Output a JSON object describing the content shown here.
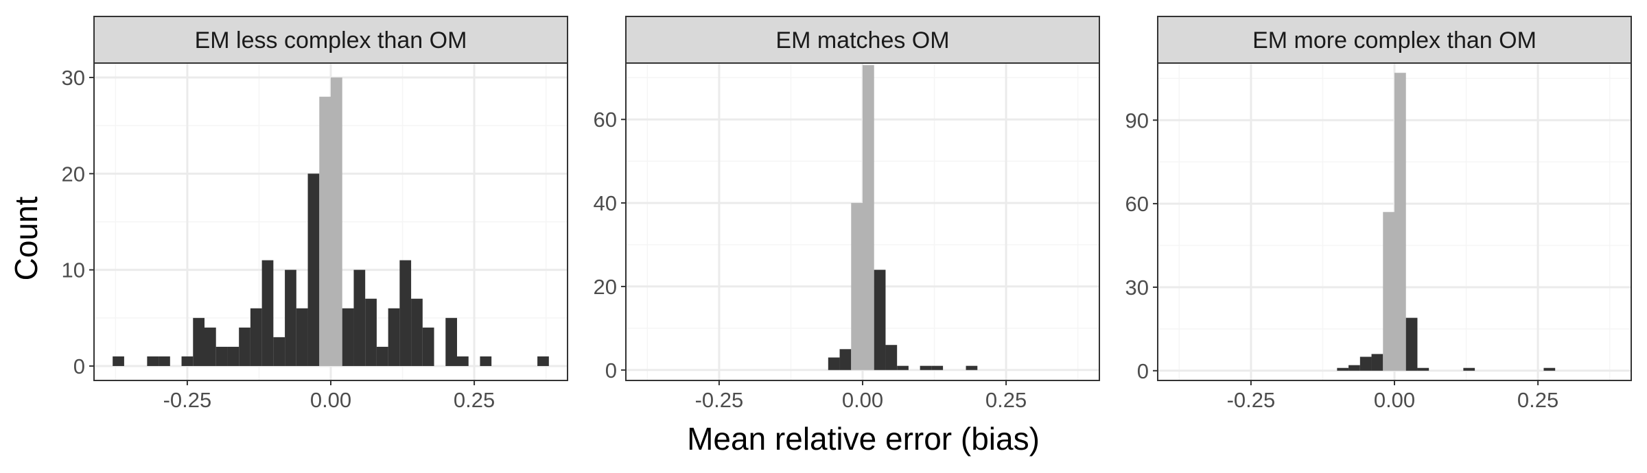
{
  "figure": {
    "xlabel": "Mean relative error (bias)",
    "ylabel": "Count"
  },
  "colors": {
    "bar_dark": "#333333",
    "bar_light": "#b3b3b3",
    "strip_fill": "#d9d9d9",
    "panel_border": "#333333",
    "grid_major": "#ebebeb",
    "grid_minor": "#f5f5f5"
  },
  "chart_data": [
    {
      "type": "bar",
      "title": "EM less complex than OM",
      "xlim": [
        -0.4125,
        0.4125
      ],
      "ylim": [
        -1.5,
        31.5
      ],
      "xticks": [
        -0.25,
        0.0,
        0.25
      ],
      "xtick_labels": [
        "-0.25",
        "0.00",
        "0.25"
      ],
      "yticks": [
        0,
        10,
        20,
        30
      ],
      "ytick_labels": [
        "0",
        "10",
        "20",
        "30"
      ],
      "bin_width": 0.02,
      "bins": [
        {
          "x": -0.37,
          "count": 1,
          "shade": "dark"
        },
        {
          "x": -0.31,
          "count": 1,
          "shade": "dark"
        },
        {
          "x": -0.29,
          "count": 1,
          "shade": "dark"
        },
        {
          "x": -0.25,
          "count": 1,
          "shade": "dark"
        },
        {
          "x": -0.23,
          "count": 5,
          "shade": "dark"
        },
        {
          "x": -0.21,
          "count": 4,
          "shade": "dark"
        },
        {
          "x": -0.19,
          "count": 2,
          "shade": "dark"
        },
        {
          "x": -0.17,
          "count": 2,
          "shade": "dark"
        },
        {
          "x": -0.15,
          "count": 4,
          "shade": "dark"
        },
        {
          "x": -0.13,
          "count": 6,
          "shade": "dark"
        },
        {
          "x": -0.11,
          "count": 11,
          "shade": "dark"
        },
        {
          "x": -0.09,
          "count": 3,
          "shade": "dark"
        },
        {
          "x": -0.07,
          "count": 10,
          "shade": "dark"
        },
        {
          "x": -0.05,
          "count": 6,
          "shade": "dark"
        },
        {
          "x": -0.03,
          "count": 20,
          "shade": "dark"
        },
        {
          "x": -0.01,
          "count": 28,
          "shade": "light"
        },
        {
          "x": 0.01,
          "count": 30,
          "shade": "light"
        },
        {
          "x": 0.03,
          "count": 6,
          "shade": "dark"
        },
        {
          "x": 0.05,
          "count": 10,
          "shade": "dark"
        },
        {
          "x": 0.07,
          "count": 7,
          "shade": "dark"
        },
        {
          "x": 0.09,
          "count": 2,
          "shade": "dark"
        },
        {
          "x": 0.11,
          "count": 6,
          "shade": "dark"
        },
        {
          "x": 0.13,
          "count": 11,
          "shade": "dark"
        },
        {
          "x": 0.15,
          "count": 7,
          "shade": "dark"
        },
        {
          "x": 0.17,
          "count": 4,
          "shade": "dark"
        },
        {
          "x": 0.21,
          "count": 5,
          "shade": "dark"
        },
        {
          "x": 0.23,
          "count": 1,
          "shade": "dark"
        },
        {
          "x": 0.27,
          "count": 1,
          "shade": "dark"
        },
        {
          "x": 0.37,
          "count": 1,
          "shade": "dark"
        }
      ]
    },
    {
      "type": "bar",
      "title": "EM matches OM",
      "xlim": [
        -0.4125,
        0.4125
      ],
      "ylim": [
        -2.5,
        73.5
      ],
      "xticks": [
        -0.25,
        0.0,
        0.25
      ],
      "xtick_labels": [
        "-0.25",
        "0.00",
        "0.25"
      ],
      "yticks": [
        0,
        20,
        40,
        60
      ],
      "ytick_labels": [
        "0",
        "20",
        "40",
        "60"
      ],
      "bin_width": 0.02,
      "bins": [
        {
          "x": -0.05,
          "count": 3,
          "shade": "dark"
        },
        {
          "x": -0.03,
          "count": 5,
          "shade": "dark"
        },
        {
          "x": -0.01,
          "count": 40,
          "shade": "light"
        },
        {
          "x": 0.01,
          "count": 73,
          "shade": "light"
        },
        {
          "x": 0.03,
          "count": 24,
          "shade": "dark"
        },
        {
          "x": 0.05,
          "count": 6,
          "shade": "dark"
        },
        {
          "x": 0.07,
          "count": 1,
          "shade": "dark"
        },
        {
          "x": 0.11,
          "count": 1,
          "shade": "dark"
        },
        {
          "x": 0.13,
          "count": 1,
          "shade": "dark"
        },
        {
          "x": 0.19,
          "count": 1,
          "shade": "dark"
        }
      ]
    },
    {
      "type": "bar",
      "title": "EM more complex than OM",
      "xlim": [
        -0.4125,
        0.4125
      ],
      "ylim": [
        -3.5,
        110.5
      ],
      "xticks": [
        -0.25,
        0.0,
        0.25
      ],
      "xtick_labels": [
        "-0.25",
        "0.00",
        "0.25"
      ],
      "yticks": [
        0,
        30,
        60,
        90
      ],
      "ytick_labels": [
        "0",
        "30",
        "60",
        "90"
      ],
      "bin_width": 0.02,
      "bins": [
        {
          "x": -0.09,
          "count": 1,
          "shade": "dark"
        },
        {
          "x": -0.07,
          "count": 2,
          "shade": "dark"
        },
        {
          "x": -0.05,
          "count": 5,
          "shade": "dark"
        },
        {
          "x": -0.03,
          "count": 6,
          "shade": "dark"
        },
        {
          "x": -0.01,
          "count": 57,
          "shade": "light"
        },
        {
          "x": 0.01,
          "count": 107,
          "shade": "light"
        },
        {
          "x": 0.03,
          "count": 19,
          "shade": "dark"
        },
        {
          "x": 0.05,
          "count": 1,
          "shade": "dark"
        },
        {
          "x": 0.13,
          "count": 1,
          "shade": "dark"
        },
        {
          "x": 0.27,
          "count": 1,
          "shade": "dark"
        }
      ]
    }
  ]
}
